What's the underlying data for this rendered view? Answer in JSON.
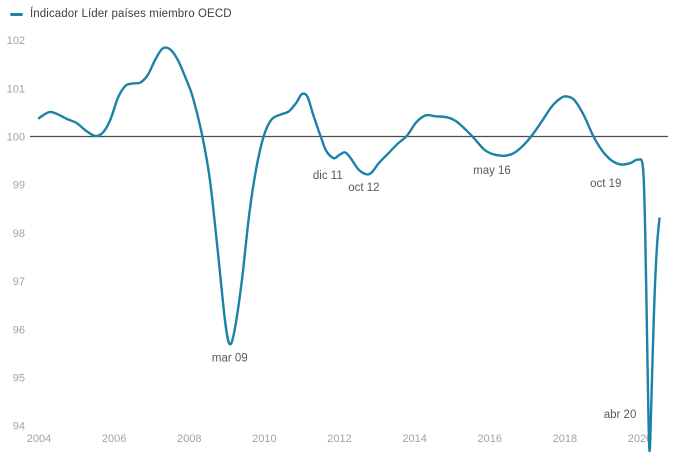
{
  "legend": {
    "label": "Índicador Líder países miembro OECD"
  },
  "colors": {
    "line": "#1d81a8",
    "baseline": "#4c4c4c",
    "tick_label": "#a2a2a2",
    "annotation": "#595959",
    "legend_text": "#3f3f3f"
  },
  "chart_data": {
    "type": "line",
    "title": "Índicador Líder países miembro OECD",
    "xlabel": "",
    "ylabel": "",
    "x_ticks": [
      2004,
      2006,
      2008,
      2010,
      2012,
      2014,
      2016,
      2018,
      2020
    ],
    "y_ticks": [
      102,
      101,
      100,
      99,
      98,
      97,
      96,
      95,
      94
    ],
    "x_range": [
      2004,
      2020.6
    ],
    "y_range": [
      94,
      102
    ],
    "baseline": 100,
    "grid": false,
    "legend_position": "top-left",
    "annotations": [
      {
        "label": "mar 09",
        "year": 2009.08,
        "value": 95.42
      },
      {
        "label": "dic 11",
        "year": 2011.69,
        "value": 99.2
      },
      {
        "label": "oct 12",
        "year": 2012.65,
        "value": 98.95
      },
      {
        "label": "may 16",
        "year": 2016.06,
        "value": 99.31
      },
      {
        "label": "oct 19",
        "year": 2019.09,
        "value": 99.04
      },
      {
        "label": "abr 20",
        "year": 2019.47,
        "value": 94.24
      }
    ],
    "series": [
      {
        "name": "Índicador Líder países miembro OECD",
        "points": [
          [
            2004.0,
            100.38
          ],
          [
            2004.15,
            100.46
          ],
          [
            2004.3,
            100.51
          ],
          [
            2004.5,
            100.46
          ],
          [
            2004.75,
            100.36
          ],
          [
            2005.0,
            100.28
          ],
          [
            2005.25,
            100.12
          ],
          [
            2005.5,
            100.01
          ],
          [
            2005.7,
            100.08
          ],
          [
            2005.9,
            100.35
          ],
          [
            2006.1,
            100.8
          ],
          [
            2006.3,
            101.05
          ],
          [
            2006.5,
            101.1
          ],
          [
            2006.7,
            101.12
          ],
          [
            2006.9,
            101.28
          ],
          [
            2007.1,
            101.6
          ],
          [
            2007.3,
            101.83
          ],
          [
            2007.5,
            101.8
          ],
          [
            2007.7,
            101.58
          ],
          [
            2007.9,
            101.22
          ],
          [
            2008.1,
            100.8
          ],
          [
            2008.35,
            100.0
          ],
          [
            2008.55,
            99.1
          ],
          [
            2008.75,
            97.7
          ],
          [
            2008.95,
            96.2
          ],
          [
            2009.07,
            95.7
          ],
          [
            2009.2,
            95.95
          ],
          [
            2009.4,
            97.0
          ],
          [
            2009.6,
            98.4
          ],
          [
            2009.8,
            99.4
          ],
          [
            2010.0,
            100.05
          ],
          [
            2010.2,
            100.36
          ],
          [
            2010.45,
            100.46
          ],
          [
            2010.65,
            100.52
          ],
          [
            2010.85,
            100.7
          ],
          [
            2011.0,
            100.88
          ],
          [
            2011.15,
            100.82
          ],
          [
            2011.3,
            100.45
          ],
          [
            2011.5,
            100.0
          ],
          [
            2011.65,
            99.7
          ],
          [
            2011.85,
            99.55
          ],
          [
            2012.0,
            99.62
          ],
          [
            2012.15,
            99.67
          ],
          [
            2012.3,
            99.55
          ],
          [
            2012.5,
            99.32
          ],
          [
            2012.7,
            99.22
          ],
          [
            2012.85,
            99.25
          ],
          [
            2013.05,
            99.45
          ],
          [
            2013.3,
            99.65
          ],
          [
            2013.55,
            99.85
          ],
          [
            2013.8,
            100.02
          ],
          [
            2014.05,
            100.3
          ],
          [
            2014.3,
            100.44
          ],
          [
            2014.55,
            100.42
          ],
          [
            2014.85,
            100.4
          ],
          [
            2015.1,
            100.32
          ],
          [
            2015.35,
            100.15
          ],
          [
            2015.6,
            99.95
          ],
          [
            2015.85,
            99.73
          ],
          [
            2016.1,
            99.63
          ],
          [
            2016.4,
            99.6
          ],
          [
            2016.65,
            99.66
          ],
          [
            2016.9,
            99.82
          ],
          [
            2017.15,
            100.05
          ],
          [
            2017.4,
            100.33
          ],
          [
            2017.65,
            100.62
          ],
          [
            2017.9,
            100.8
          ],
          [
            2018.05,
            100.83
          ],
          [
            2018.25,
            100.76
          ],
          [
            2018.5,
            100.45
          ],
          [
            2018.75,
            100.02
          ],
          [
            2019.0,
            99.7
          ],
          [
            2019.25,
            99.5
          ],
          [
            2019.5,
            99.42
          ],
          [
            2019.75,
            99.45
          ],
          [
            2019.95,
            99.52
          ],
          [
            2020.08,
            99.35
          ],
          [
            2020.14,
            98.0
          ],
          [
            2020.2,
            95.3
          ],
          [
            2020.25,
            93.5
          ],
          [
            2020.3,
            94.4
          ],
          [
            2020.37,
            96.3
          ],
          [
            2020.45,
            97.7
          ],
          [
            2020.52,
            98.3
          ]
        ]
      }
    ]
  }
}
